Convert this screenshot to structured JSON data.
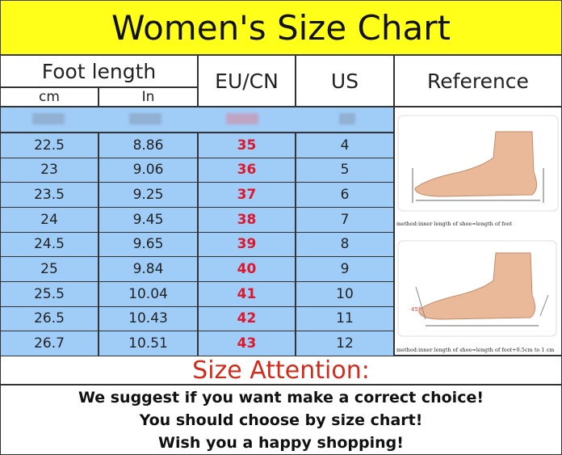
{
  "title": "Women's Size Chart",
  "headers": {
    "foot_length": "Foot length",
    "cm": "cm",
    "in": "In",
    "eu_cn": "EU/CN",
    "us": "US",
    "reference": "Reference"
  },
  "rows": [
    {
      "cm": "22.5",
      "in": "8.86",
      "eu": "35",
      "us": "4"
    },
    {
      "cm": "23",
      "in": "9.06",
      "eu": "36",
      "us": "5"
    },
    {
      "cm": "23.5",
      "in": "9.25",
      "eu": "37",
      "us": "6"
    },
    {
      "cm": "24",
      "in": "9.45",
      "eu": "38",
      "us": "7"
    },
    {
      "cm": "24.5",
      "in": "9.65",
      "eu": "39",
      "us": "8"
    },
    {
      "cm": "25",
      "in": "9.84",
      "eu": "40",
      "us": "9"
    },
    {
      "cm": "25.5",
      "in": "10.04",
      "eu": "41",
      "us": "10"
    },
    {
      "cm": "26.5",
      "in": "10.43",
      "eu": "42",
      "us": "11"
    },
    {
      "cm": "26.7",
      "in": "10.51",
      "eu": "43",
      "us": "12"
    }
  ],
  "reference": {
    "caption1": "method:inner length of shoe=length of foot",
    "caption2": "method:inner length of shoe=length of foot+0.5cm to 1 cm",
    "angle": "45°"
  },
  "attention": {
    "title": "Size Attention:",
    "lines": [
      "We suggest if you want make a correct choice!",
      "You should choose by size chart!",
      "Wish you a happy shopping!"
    ]
  },
  "colors": {
    "title_bg": "#ffff1a",
    "table_bg": "#9fcdf8",
    "eu_text": "#e0162b",
    "attention": "#d42a1c"
  }
}
